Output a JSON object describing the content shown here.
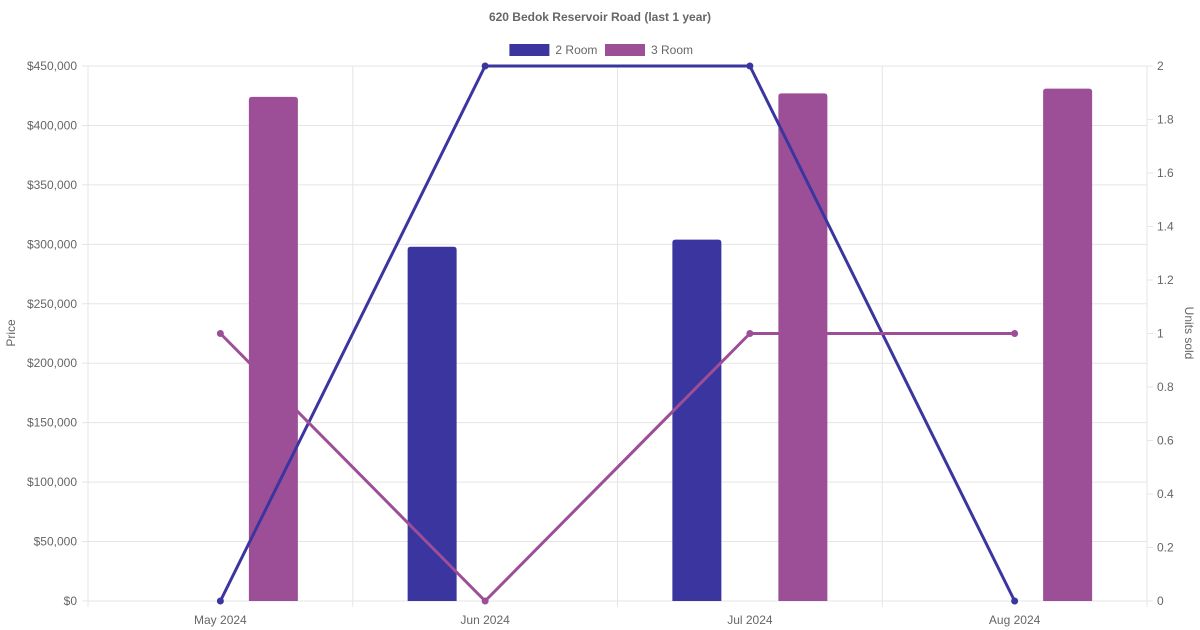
{
  "chart_data": {
    "type": "bar",
    "title": "620 Bedok Reservoir Road (last 1 year)",
    "categories": [
      "May 2024",
      "Jun 2024",
      "Jul 2024",
      "Aug 2024"
    ],
    "ylabel": "Price",
    "y2label": "Units sold",
    "ylim": [
      0,
      450000
    ],
    "y2lim": [
      0,
      2
    ],
    "yticks": [
      "$0",
      "$50,000",
      "$100,000",
      "$150,000",
      "$200,000",
      "$250,000",
      "$300,000",
      "$350,000",
      "$400,000",
      "$450,000"
    ],
    "y2ticks": [
      "0",
      "0.2",
      "0.4",
      "0.6",
      "0.8",
      "1",
      "1.2",
      "1.4",
      "1.6",
      "1.8",
      "2"
    ],
    "legend_position": "top-center",
    "grid": true,
    "series": [
      {
        "name": "2 Room",
        "color": "#3b35a0",
        "price": [
          null,
          298000,
          304000,
          null
        ],
        "units_sold": [
          0,
          2,
          2,
          0
        ]
      },
      {
        "name": "3 Room",
        "color": "#9c4f96",
        "price": [
          424000,
          null,
          427000,
          431000
        ],
        "units_sold": [
          1,
          0,
          1,
          1
        ]
      }
    ]
  }
}
